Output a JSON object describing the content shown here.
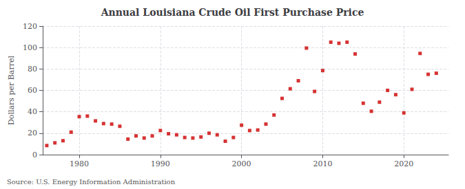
{
  "chart_data": {
    "type": "scatter",
    "title": "Annual Louisiana Crude Oil First Purchase Price",
    "ylabel": "Dollars per Barrel",
    "annotations": [
      "Source: U.S. Energy Information Administration"
    ],
    "x": [
      1976,
      1977,
      1978,
      1979,
      1980,
      1981,
      1982,
      1983,
      1984,
      1985,
      1986,
      1987,
      1988,
      1989,
      1990,
      1991,
      1992,
      1993,
      1994,
      1995,
      1996,
      1997,
      1998,
      1999,
      2000,
      2001,
      2002,
      2003,
      2004,
      2005,
      2006,
      2007,
      2008,
      2009,
      2010,
      2011,
      2012,
      2013,
      2014,
      2015,
      2016,
      2017,
      2018,
      2019,
      2020,
      2021,
      2022,
      2023,
      2024
    ],
    "values": [
      8.5,
      11.0,
      13.0,
      21.0,
      35.5,
      36.0,
      31.5,
      29.0,
      28.5,
      26.5,
      14.5,
      17.5,
      15.5,
      17.5,
      22.5,
      19.5,
      18.5,
      16.0,
      15.5,
      16.5,
      20.0,
      18.5,
      12.5,
      16.0,
      27.5,
      22.5,
      23.0,
      28.5,
      37.0,
      52.5,
      61.5,
      69.0,
      99.5,
      59.0,
      78.5,
      105.0,
      104.0,
      105.0,
      94.0,
      48.0,
      40.5,
      49.0,
      60.0,
      56.0,
      39.0,
      61.0,
      94.5,
      75.0,
      76.0
    ],
    "color": "#cc0000",
    "marker": "square",
    "xlim": [
      1975.5,
      2025.5
    ],
    "xticks": [
      1980,
      1990,
      2000,
      2010,
      2020
    ],
    "ylim": [
      0,
      120
    ],
    "yticks": [
      0,
      20,
      40,
      60,
      80,
      100,
      120
    ],
    "grid": true
  }
}
